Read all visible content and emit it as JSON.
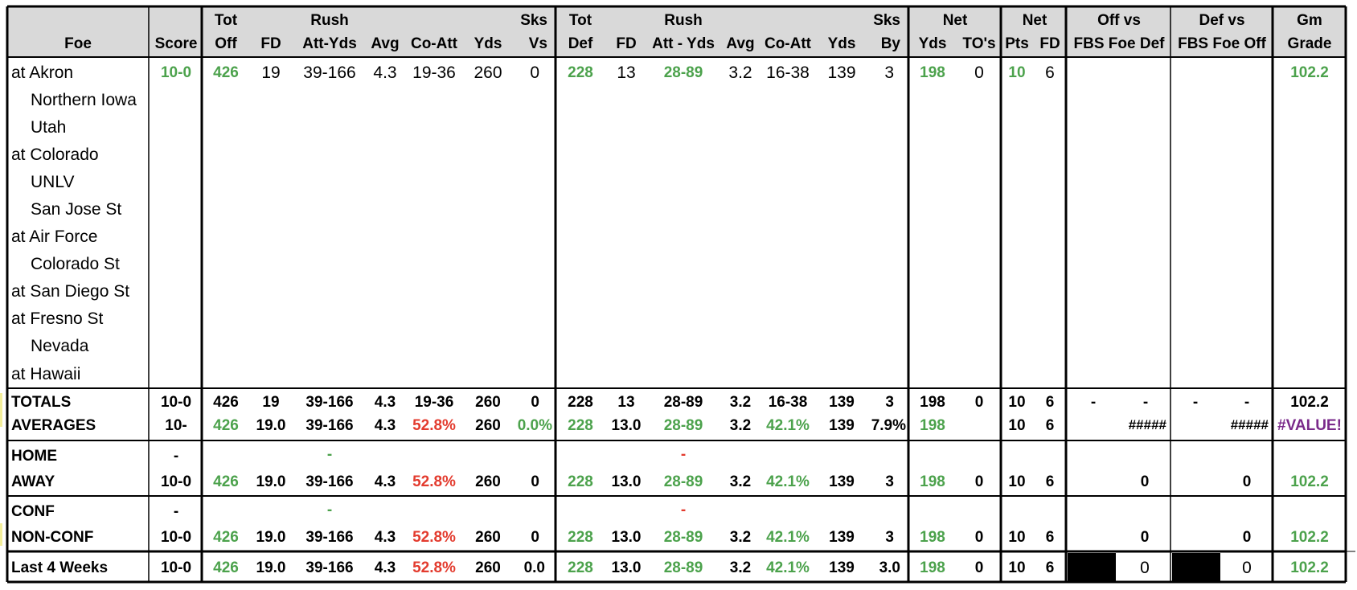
{
  "colors": {
    "green": "#4ca24c",
    "red": "#e33b2e",
    "purple": "#7a2a8a",
    "header_bg": "#d9d9d9"
  },
  "header": {
    "foe": "Foe",
    "score": "Score",
    "tot": "Tot",
    "off": "Off",
    "fd": "FD",
    "rush": "Rush",
    "att_yds": "Att-Yds",
    "avg": "Avg",
    "co_att": "Co-Att",
    "yds": "Yds",
    "sks": "Sks",
    "vs": "Vs",
    "tot2": "Tot",
    "def": "Def",
    "fd2": "FD",
    "rush2": "Rush",
    "att_yds2": "Att - Yds",
    "avg2": "Avg",
    "co_att2": "Co-Att",
    "yds2": "Yds",
    "sks2": "Sks",
    "by": "By",
    "net": "Net",
    "net_yds": "Yds",
    "tos": "TO's",
    "net2": "Net",
    "pts": "Pts",
    "fd3": "FD",
    "off_vs": "Off vs",
    "fbs_foe_def": "FBS Foe Def",
    "def_vs": "Def vs",
    "fbs_foe_off": "FBS Foe Off",
    "gm": "Gm",
    "grade": "Grade"
  },
  "foes": [
    "at Akron",
    "Northern Iowa",
    "Utah",
    "at Colorado",
    "UNLV",
    "San Jose St",
    "at Air Force",
    "Colorado St",
    "at San Diego St",
    "at Fresno St",
    "Nevada",
    "at Hawaii"
  ],
  "game1": {
    "score": "10-0",
    "tot_off": "426",
    "fd": "19",
    "rush": "39-166",
    "avg": "4.3",
    "co_att": "19-36",
    "yds": "260",
    "sks_vs": "0",
    "tot_def": "228",
    "fd_def": "13",
    "rush_def": "28-89",
    "avg_def": "3.2",
    "co_att_def": "16-38",
    "yds_def": "139",
    "sks_by": "3",
    "net_yds": "198",
    "tos": "0",
    "pts": "10",
    "net_fd": "6",
    "grade": "102.2"
  },
  "totals": {
    "label": "TOTALS",
    "score": "10-0",
    "tot_off": "426",
    "fd": "19",
    "rush": "39-166",
    "avg": "4.3",
    "co_att": "19-36",
    "yds": "260",
    "sks_vs": "0",
    "tot_def": "228",
    "fd_def": "13",
    "rush_def": "28-89",
    "avg_def": "3.2",
    "co_att_def": "16-38",
    "yds_def": "139",
    "sks_by": "3",
    "net_yds": "198",
    "tos": "0",
    "pts": "10",
    "net_fd": "6",
    "off_a": "-",
    "off_b": "-",
    "def_a": "-",
    "def_b": "-",
    "grade": "102.2"
  },
  "averages": {
    "label": "AVERAGES",
    "score": "10-",
    "tot_off": "426",
    "fd": "19.0",
    "rush": "39-166",
    "avg": "4.3",
    "co_att": "52.8%",
    "yds": "260",
    "sks_vs": "0.0%",
    "tot_def": "228",
    "fd_def": "13.0",
    "rush_def": "28-89",
    "avg_def": "3.2",
    "co_att_def": "42.1%",
    "yds_def": "139",
    "sks_by": "7.9%",
    "net_yds": "198",
    "pts": "10",
    "net_fd": "6",
    "off_vs": "#####",
    "def_vs": "#####",
    "grade": "#VALUE!"
  },
  "home": {
    "label": "HOME",
    "score": "-",
    "rush": "-",
    "rush_def": "-"
  },
  "away": {
    "label": "AWAY",
    "score": "10-0",
    "tot_off": "426",
    "fd": "19.0",
    "rush": "39-166",
    "avg": "4.3",
    "co_att": "52.8%",
    "yds": "260",
    "sks_vs": "0",
    "tot_def": "228",
    "fd_def": "13.0",
    "rush_def": "28-89",
    "avg_def": "3.2",
    "co_att_def": "42.1%",
    "yds_def": "139",
    "sks_by": "3",
    "net_yds": "198",
    "tos": "0",
    "pts": "10",
    "net_fd": "6",
    "off_vs": "0",
    "def_vs": "0",
    "grade": "102.2"
  },
  "conf": {
    "label": "CONF",
    "score": "-",
    "rush": "-",
    "rush_def": "-"
  },
  "nonconf": {
    "label": "NON-CONF",
    "score": "10-0",
    "tot_off": "426",
    "fd": "19.0",
    "rush": "39-166",
    "avg": "4.3",
    "co_att": "52.8%",
    "yds": "260",
    "sks_vs": "0",
    "tot_def": "228",
    "fd_def": "13.0",
    "rush_def": "28-89",
    "avg_def": "3.2",
    "co_att_def": "42.1%",
    "yds_def": "139",
    "sks_by": "3",
    "net_yds": "198",
    "tos": "0",
    "pts": "10",
    "net_fd": "6",
    "off_vs": "0",
    "def_vs": "0",
    "grade": "102.2"
  },
  "last4": {
    "label": "Last 4 Weeks",
    "score": "10-0",
    "tot_off": "426",
    "fd": "19.0",
    "rush": "39-166",
    "avg": "4.3",
    "co_att": "52.8%",
    "yds": "260",
    "sks_vs": "0.0",
    "tot_def": "228",
    "fd_def": "13.0",
    "rush_def": "28-89",
    "avg_def": "3.2",
    "co_att_def": "42.1%",
    "yds_def": "139",
    "sks_by": "3.0",
    "net_yds": "198",
    "tos": "0",
    "pts": "10",
    "net_fd": "6",
    "off_vs": "0",
    "def_vs": "0",
    "grade": "102.2"
  }
}
